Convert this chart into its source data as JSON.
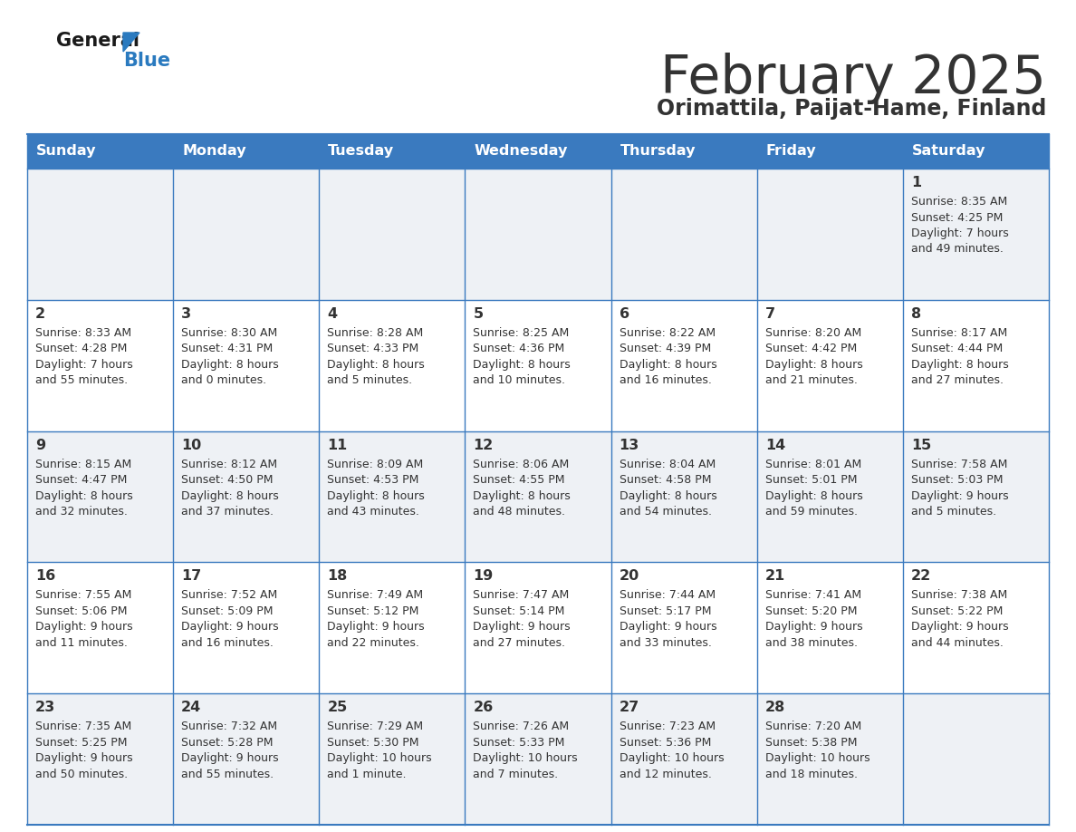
{
  "title": "February 2025",
  "subtitle": "Orimattila, Paijat-Hame, Finland",
  "header_color": "#3a7abf",
  "header_text_color": "#ffffff",
  "weekdays": [
    "Sunday",
    "Monday",
    "Tuesday",
    "Wednesday",
    "Thursday",
    "Friday",
    "Saturday"
  ],
  "bg_color": "#ffffff",
  "cell_alt_color": "#eef1f5",
  "cell_white_color": "#ffffff",
  "border_color": "#3a7abf",
  "text_color": "#333333",
  "logo_general_color": "#1a1a1a",
  "logo_blue_color": "#2a7abf",
  "days": [
    {
      "day": 1,
      "col": 6,
      "row": 0,
      "sunrise": "8:35 AM",
      "sunset": "4:25 PM",
      "daylight_line1": "Daylight: 7 hours",
      "daylight_line2": "and 49 minutes."
    },
    {
      "day": 2,
      "col": 0,
      "row": 1,
      "sunrise": "8:33 AM",
      "sunset": "4:28 PM",
      "daylight_line1": "Daylight: 7 hours",
      "daylight_line2": "and 55 minutes."
    },
    {
      "day": 3,
      "col": 1,
      "row": 1,
      "sunrise": "8:30 AM",
      "sunset": "4:31 PM",
      "daylight_line1": "Daylight: 8 hours",
      "daylight_line2": "and 0 minutes."
    },
    {
      "day": 4,
      "col": 2,
      "row": 1,
      "sunrise": "8:28 AM",
      "sunset": "4:33 PM",
      "daylight_line1": "Daylight: 8 hours",
      "daylight_line2": "and 5 minutes."
    },
    {
      "day": 5,
      "col": 3,
      "row": 1,
      "sunrise": "8:25 AM",
      "sunset": "4:36 PM",
      "daylight_line1": "Daylight: 8 hours",
      "daylight_line2": "and 10 minutes."
    },
    {
      "day": 6,
      "col": 4,
      "row": 1,
      "sunrise": "8:22 AM",
      "sunset": "4:39 PM",
      "daylight_line1": "Daylight: 8 hours",
      "daylight_line2": "and 16 minutes."
    },
    {
      "day": 7,
      "col": 5,
      "row": 1,
      "sunrise": "8:20 AM",
      "sunset": "4:42 PM",
      "daylight_line1": "Daylight: 8 hours",
      "daylight_line2": "and 21 minutes."
    },
    {
      "day": 8,
      "col": 6,
      "row": 1,
      "sunrise": "8:17 AM",
      "sunset": "4:44 PM",
      "daylight_line1": "Daylight: 8 hours",
      "daylight_line2": "and 27 minutes."
    },
    {
      "day": 9,
      "col": 0,
      "row": 2,
      "sunrise": "8:15 AM",
      "sunset": "4:47 PM",
      "daylight_line1": "Daylight: 8 hours",
      "daylight_line2": "and 32 minutes."
    },
    {
      "day": 10,
      "col": 1,
      "row": 2,
      "sunrise": "8:12 AM",
      "sunset": "4:50 PM",
      "daylight_line1": "Daylight: 8 hours",
      "daylight_line2": "and 37 minutes."
    },
    {
      "day": 11,
      "col": 2,
      "row": 2,
      "sunrise": "8:09 AM",
      "sunset": "4:53 PM",
      "daylight_line1": "Daylight: 8 hours",
      "daylight_line2": "and 43 minutes."
    },
    {
      "day": 12,
      "col": 3,
      "row": 2,
      "sunrise": "8:06 AM",
      "sunset": "4:55 PM",
      "daylight_line1": "Daylight: 8 hours",
      "daylight_line2": "and 48 minutes."
    },
    {
      "day": 13,
      "col": 4,
      "row": 2,
      "sunrise": "8:04 AM",
      "sunset": "4:58 PM",
      "daylight_line1": "Daylight: 8 hours",
      "daylight_line2": "and 54 minutes."
    },
    {
      "day": 14,
      "col": 5,
      "row": 2,
      "sunrise": "8:01 AM",
      "sunset": "5:01 PM",
      "daylight_line1": "Daylight: 8 hours",
      "daylight_line2": "and 59 minutes."
    },
    {
      "day": 15,
      "col": 6,
      "row": 2,
      "sunrise": "7:58 AM",
      "sunset": "5:03 PM",
      "daylight_line1": "Daylight: 9 hours",
      "daylight_line2": "and 5 minutes."
    },
    {
      "day": 16,
      "col": 0,
      "row": 3,
      "sunrise": "7:55 AM",
      "sunset": "5:06 PM",
      "daylight_line1": "Daylight: 9 hours",
      "daylight_line2": "and 11 minutes."
    },
    {
      "day": 17,
      "col": 1,
      "row": 3,
      "sunrise": "7:52 AM",
      "sunset": "5:09 PM",
      "daylight_line1": "Daylight: 9 hours",
      "daylight_line2": "and 16 minutes."
    },
    {
      "day": 18,
      "col": 2,
      "row": 3,
      "sunrise": "7:49 AM",
      "sunset": "5:12 PM",
      "daylight_line1": "Daylight: 9 hours",
      "daylight_line2": "and 22 minutes."
    },
    {
      "day": 19,
      "col": 3,
      "row": 3,
      "sunrise": "7:47 AM",
      "sunset": "5:14 PM",
      "daylight_line1": "Daylight: 9 hours",
      "daylight_line2": "and 27 minutes."
    },
    {
      "day": 20,
      "col": 4,
      "row": 3,
      "sunrise": "7:44 AM",
      "sunset": "5:17 PM",
      "daylight_line1": "Daylight: 9 hours",
      "daylight_line2": "and 33 minutes."
    },
    {
      "day": 21,
      "col": 5,
      "row": 3,
      "sunrise": "7:41 AM",
      "sunset": "5:20 PM",
      "daylight_line1": "Daylight: 9 hours",
      "daylight_line2": "and 38 minutes."
    },
    {
      "day": 22,
      "col": 6,
      "row": 3,
      "sunrise": "7:38 AM",
      "sunset": "5:22 PM",
      "daylight_line1": "Daylight: 9 hours",
      "daylight_line2": "and 44 minutes."
    },
    {
      "day": 23,
      "col": 0,
      "row": 4,
      "sunrise": "7:35 AM",
      "sunset": "5:25 PM",
      "daylight_line1": "Daylight: 9 hours",
      "daylight_line2": "and 50 minutes."
    },
    {
      "day": 24,
      "col": 1,
      "row": 4,
      "sunrise": "7:32 AM",
      "sunset": "5:28 PM",
      "daylight_line1": "Daylight: 9 hours",
      "daylight_line2": "and 55 minutes."
    },
    {
      "day": 25,
      "col": 2,
      "row": 4,
      "sunrise": "7:29 AM",
      "sunset": "5:30 PM",
      "daylight_line1": "Daylight: 10 hours",
      "daylight_line2": "and 1 minute."
    },
    {
      "day": 26,
      "col": 3,
      "row": 4,
      "sunrise": "7:26 AM",
      "sunset": "5:33 PM",
      "daylight_line1": "Daylight: 10 hours",
      "daylight_line2": "and 7 minutes."
    },
    {
      "day": 27,
      "col": 4,
      "row": 4,
      "sunrise": "7:23 AM",
      "sunset": "5:36 PM",
      "daylight_line1": "Daylight: 10 hours",
      "daylight_line2": "and 12 minutes."
    },
    {
      "day": 28,
      "col": 5,
      "row": 4,
      "sunrise": "7:20 AM",
      "sunset": "5:38 PM",
      "daylight_line1": "Daylight: 10 hours",
      "daylight_line2": "and 18 minutes."
    }
  ]
}
